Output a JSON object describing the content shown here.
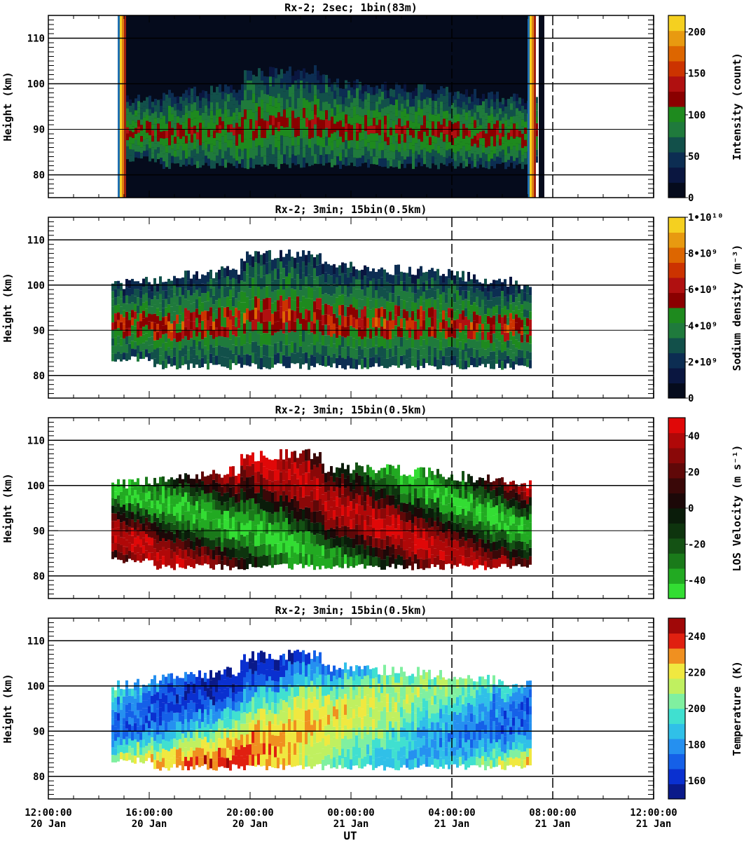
{
  "figure": {
    "x_axis": {
      "label": "UT",
      "ticks": [
        {
          "time": "12:00:00",
          "date": "20 Jan"
        },
        {
          "time": "16:00:00",
          "date": "20 Jan"
        },
        {
          "time": "20:00:00",
          "date": "20 Jan"
        },
        {
          "time": "00:00:00",
          "date": "21 Jan"
        },
        {
          "time": "04:00:00",
          "date": "21 Jan"
        },
        {
          "time": "08:00:00",
          "date": "21 Jan"
        },
        {
          "time": "12:00:00",
          "date": "21 Jan"
        }
      ]
    }
  },
  "chart_data": [
    {
      "type": "heatmap",
      "title": "Rx-2;  2sec; 1bin(83m)",
      "ylabel": "Height (km)",
      "ylim": [
        75,
        115
      ],
      "yticks": [
        80,
        90,
        100,
        110
      ],
      "xlim": [
        "2020-01-20 12:00:00",
        "2020-01-21 12:00:00"
      ],
      "colorbar": {
        "label": "Intensity (count)",
        "range": [
          0,
          220
        ],
        "ticks": [
          "0",
          "50",
          "100",
          "150",
          "200"
        ],
        "colors": [
          "#050b1c",
          "#0a1640",
          "#0c2d52",
          "#12504a",
          "#1f7a3c",
          "#1e8a1e",
          "#8a0000",
          "#b01010",
          "#cc3300",
          "#dd6600",
          "#e89a10",
          "#f5d020"
        ]
      },
      "layer_extent": {
        "start": "2020-01-20 14:45:00",
        "end": "2020-01-21 07:20:00",
        "bottom_km": 82,
        "top_km": 100
      }
    },
    {
      "type": "heatmap",
      "title": "Rx-2; 3min; 15bin(0.5km)",
      "ylabel": "Height (km)",
      "ylim": [
        75,
        115
      ],
      "yticks": [
        80,
        90,
        100,
        110
      ],
      "colorbar": {
        "label": "Sodium density (m⁻³)",
        "range": [
          0,
          10000000000.0
        ],
        "ticks": [
          "0",
          "2•10⁹",
          "4•10⁹",
          "6•10⁹",
          "8•10⁹",
          "1•10¹⁰"
        ],
        "colors": [
          "#050b1c",
          "#0a1640",
          "#0c2d52",
          "#12504a",
          "#1f7a3c",
          "#1e8a1e",
          "#8a0000",
          "#b01010",
          "#cc3300",
          "#dd6600",
          "#e89a10",
          "#f5d020"
        ]
      },
      "layer_extent": {
        "start": "2020-01-20 14:30:00",
        "end": "2020-01-21 07:10:00",
        "bottom_km": 82,
        "top_km": 104
      }
    },
    {
      "type": "heatmap",
      "title": "Rx-2; 3min; 15bin(0.5km)",
      "ylabel": "Height (km)",
      "ylim": [
        75,
        115
      ],
      "yticks": [
        80,
        90,
        100,
        110
      ],
      "colorbar": {
        "label": "LOS Velocity (m s⁻¹)",
        "range": [
          -50,
          50
        ],
        "ticks": [
          "-40",
          "-20",
          "0",
          "20",
          "40"
        ],
        "colors": [
          "#33dd33",
          "#22aa22",
          "#1a7a1a",
          "#145214",
          "#0e340e",
          "#0a1c0a",
          "#1c0808",
          "#3a0808",
          "#600808",
          "#8a0808",
          "#b00808",
          "#e00808"
        ]
      },
      "layer_extent": {
        "start": "2020-01-20 14:30:00",
        "end": "2020-01-21 07:10:00",
        "bottom_km": 82,
        "top_km": 104
      }
    },
    {
      "type": "heatmap",
      "title": "Rx-2; 3min; 15bin(0.5km)",
      "ylabel": "Height (km)",
      "ylim": [
        75,
        115
      ],
      "yticks": [
        80,
        90,
        100,
        110
      ],
      "colorbar": {
        "label": "Temperature (K)",
        "range": [
          150,
          250
        ],
        "ticks": [
          "160",
          "180",
          "200",
          "220",
          "240"
        ],
        "colors": [
          "#0a1a8a",
          "#0a30d0",
          "#1560e8",
          "#2590f0",
          "#30c0e8",
          "#40e0d0",
          "#80f0a0",
          "#c0f060",
          "#f0e840",
          "#f09020",
          "#e02010",
          "#a00808"
        ]
      },
      "layer_extent": {
        "start": "2020-01-20 14:30:00",
        "end": "2020-01-21 07:10:00",
        "bottom_km": 82,
        "top_km": 104
      }
    }
  ]
}
